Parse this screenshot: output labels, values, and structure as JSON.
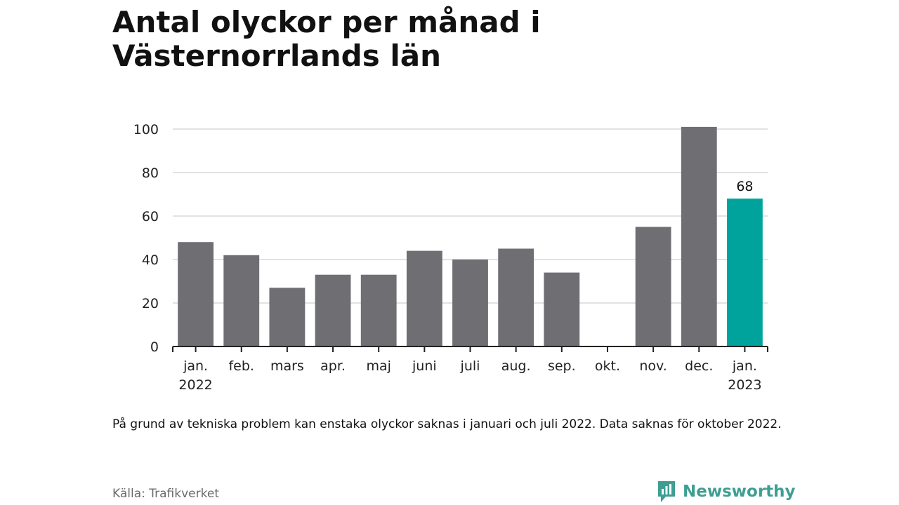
{
  "title": "Antal olyckor per månad i Västernorrlands län",
  "note": "På grund av tekniska problem kan enstaka olyckor saknas i januari och juli 2022. Data saknas för oktober 2022.",
  "source": "Källa: Trafikverket",
  "brand": "Newsworthy",
  "colors": {
    "bar": "#6e6e73",
    "highlight": "#00a39b",
    "grid": "#d9d9d9",
    "axis": "#222222",
    "brand": "#3e9e92"
  },
  "chart_data": {
    "type": "bar",
    "categories": [
      [
        "jan.",
        "2022"
      ],
      [
        "feb."
      ],
      [
        "mars"
      ],
      [
        "apr."
      ],
      [
        "maj"
      ],
      [
        "juni"
      ],
      [
        "juli"
      ],
      [
        "aug."
      ],
      [
        "sep."
      ],
      [
        "okt."
      ],
      [
        "nov."
      ],
      [
        "dec."
      ],
      [
        "jan.",
        "2023"
      ]
    ],
    "values": [
      48,
      42,
      27,
      33,
      33,
      44,
      40,
      45,
      34,
      null,
      55,
      101,
      68
    ],
    "highlight_index": 12,
    "data_labels": {
      "12": "68"
    },
    "yticks": [
      0,
      20,
      40,
      60,
      80,
      100
    ],
    "ylim": [
      0,
      100
    ],
    "grid": true
  }
}
